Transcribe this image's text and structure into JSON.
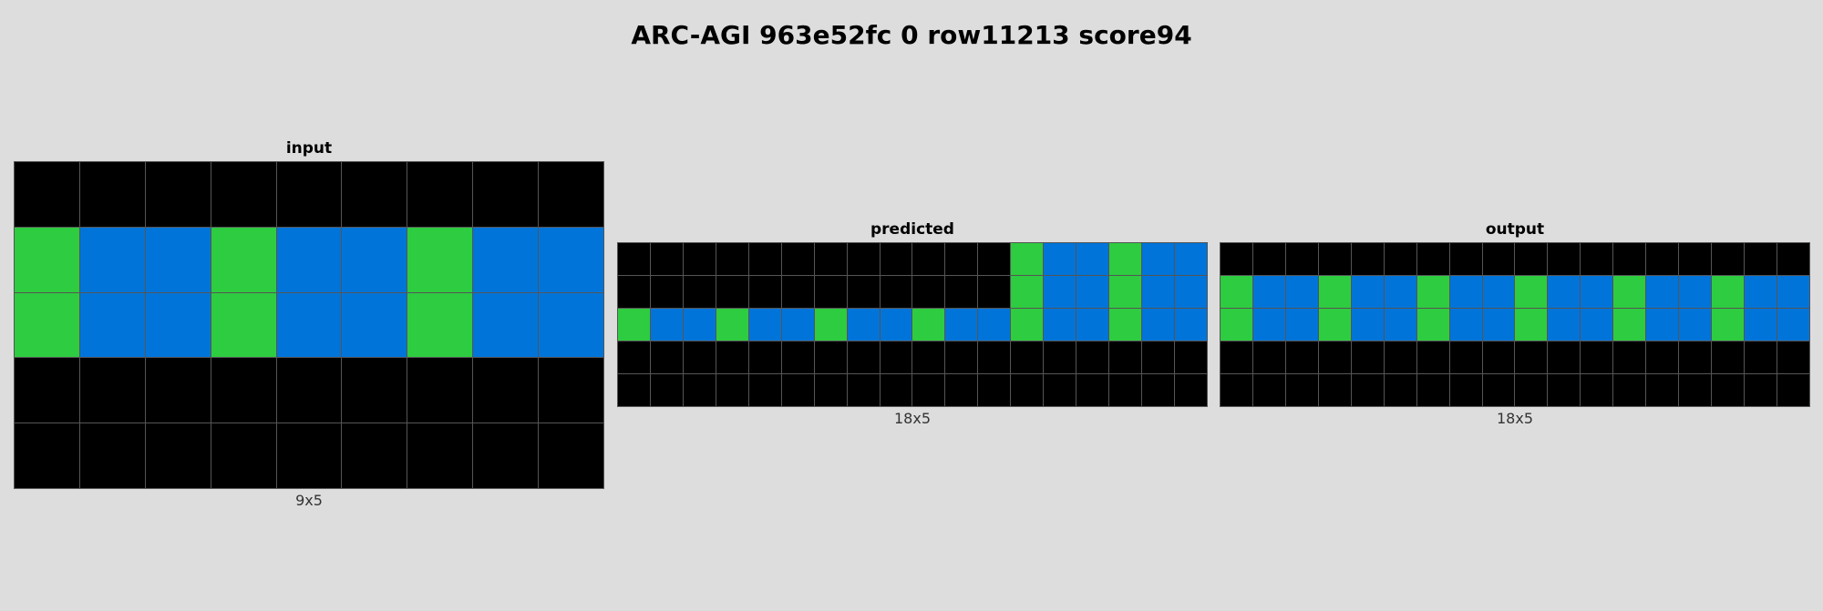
{
  "title": "ARC-AGI 963e52fc 0 row11213 score94",
  "palette": {
    "0": "#000000",
    "1": "#0074d9",
    "3": "#2ecc40"
  },
  "panels": {
    "input": {
      "label": "input",
      "dims": "9x5",
      "rows": [
        [
          0,
          0,
          0,
          0,
          0,
          0,
          0,
          0,
          0
        ],
        [
          3,
          1,
          1,
          3,
          1,
          1,
          3,
          1,
          1
        ],
        [
          3,
          1,
          1,
          3,
          1,
          1,
          3,
          1,
          1
        ],
        [
          0,
          0,
          0,
          0,
          0,
          0,
          0,
          0,
          0
        ],
        [
          0,
          0,
          0,
          0,
          0,
          0,
          0,
          0,
          0
        ]
      ]
    },
    "predicted": {
      "label": "predicted",
      "dims": "18x5",
      "rows": [
        [
          0,
          0,
          0,
          0,
          0,
          0,
          0,
          0,
          0,
          0,
          0,
          0,
          3,
          1,
          1,
          3,
          1,
          1
        ],
        [
          0,
          0,
          0,
          0,
          0,
          0,
          0,
          0,
          0,
          0,
          0,
          0,
          3,
          1,
          1,
          3,
          1,
          1
        ],
        [
          3,
          1,
          1,
          3,
          1,
          1,
          3,
          1,
          1,
          3,
          1,
          1,
          3,
          1,
          1,
          3,
          1,
          1
        ],
        [
          0,
          0,
          0,
          0,
          0,
          0,
          0,
          0,
          0,
          0,
          0,
          0,
          0,
          0,
          0,
          0,
          0,
          0
        ],
        [
          0,
          0,
          0,
          0,
          0,
          0,
          0,
          0,
          0,
          0,
          0,
          0,
          0,
          0,
          0,
          0,
          0,
          0
        ]
      ]
    },
    "output": {
      "label": "output",
      "dims": "18x5",
      "rows": [
        [
          0,
          0,
          0,
          0,
          0,
          0,
          0,
          0,
          0,
          0,
          0,
          0,
          0,
          0,
          0,
          0,
          0,
          0
        ],
        [
          3,
          1,
          1,
          3,
          1,
          1,
          3,
          1,
          1,
          3,
          1,
          1,
          3,
          1,
          1,
          3,
          1,
          1
        ],
        [
          3,
          1,
          1,
          3,
          1,
          1,
          3,
          1,
          1,
          3,
          1,
          1,
          3,
          1,
          1,
          3,
          1,
          1
        ],
        [
          0,
          0,
          0,
          0,
          0,
          0,
          0,
          0,
          0,
          0,
          0,
          0,
          0,
          0,
          0,
          0,
          0,
          0
        ],
        [
          0,
          0,
          0,
          0,
          0,
          0,
          0,
          0,
          0,
          0,
          0,
          0,
          0,
          0,
          0,
          0,
          0,
          0
        ]
      ]
    }
  }
}
